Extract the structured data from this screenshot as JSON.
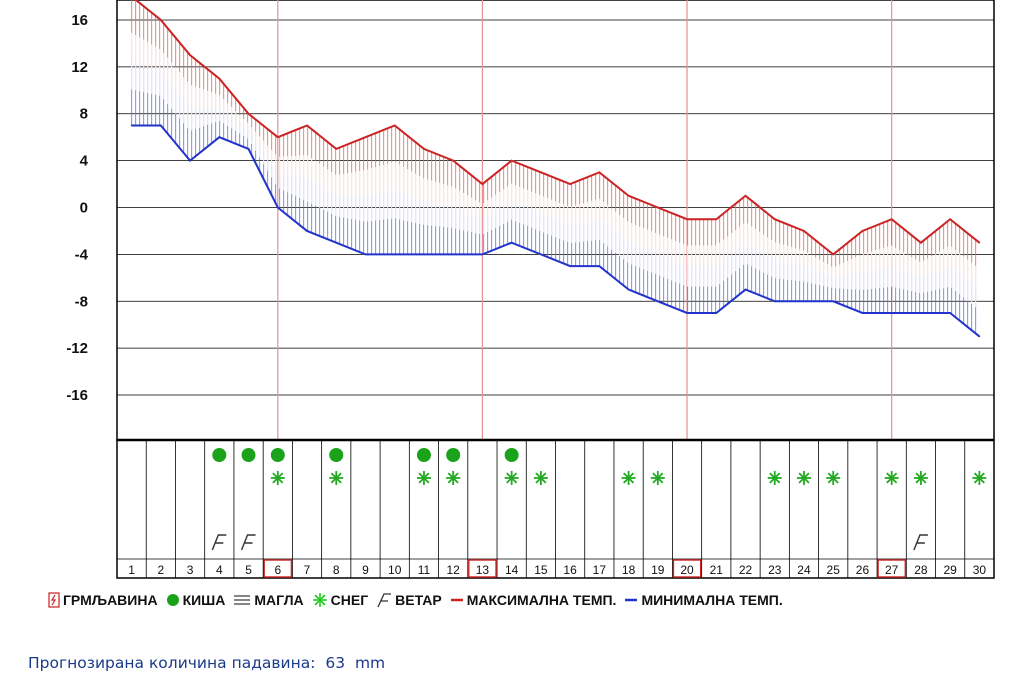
{
  "chart_data": {
    "type": "line",
    "y_ticks": [
      "16",
      "12",
      "8",
      "4",
      "0",
      "-4",
      "-8",
      "-12",
      "-16"
    ],
    "ylim": [
      -20,
      18
    ],
    "days": [
      "1",
      "2",
      "3",
      "4",
      "5",
      "6",
      "7",
      "8",
      "9",
      "10",
      "11",
      "12",
      "13",
      "14",
      "15",
      "16",
      "17",
      "18",
      "19",
      "20",
      "21",
      "22",
      "23",
      "24",
      "25",
      "26",
      "27",
      "28",
      "29",
      "30"
    ],
    "highlighted_days": [
      6,
      13,
      20,
      27
    ],
    "series": [
      {
        "name": "МАКСИМАЛНА ТЕМП.",
        "color": "#cc2222",
        "x": [
          1,
          2,
          3,
          4,
          5,
          6,
          7,
          8,
          9,
          10,
          11,
          12,
          13,
          14,
          15,
          16,
          17,
          18,
          19,
          20,
          21,
          22,
          23,
          24,
          25,
          26,
          27,
          28,
          29,
          30
        ],
        "values": [
          18,
          16,
          13,
          11,
          8,
          6,
          7,
          5,
          6,
          7,
          5,
          4,
          2,
          4,
          3,
          2,
          3,
          1,
          0,
          -1,
          -1,
          1,
          -1,
          -2,
          -4,
          -2,
          -1,
          -3,
          -1,
          -3
        ]
      },
      {
        "name": "МИНИМАЛНА ТЕМП.",
        "color": "#2233cc",
        "x": [
          1,
          2,
          3,
          4,
          5,
          6,
          7,
          8,
          9,
          10,
          11,
          12,
          13,
          14,
          15,
          16,
          17,
          18,
          19,
          20,
          21,
          22,
          23,
          24,
          25,
          26,
          27,
          28,
          29,
          30
        ],
        "values": [
          7,
          7,
          4,
          6,
          5,
          0,
          -2,
          -3,
          -4,
          -4,
          -4,
          -4,
          -4,
          -3,
          -4,
          -5,
          -5,
          -7,
          -8,
          -9,
          -9,
          -7,
          -8,
          -8,
          -8,
          -9,
          -9,
          -9,
          -9,
          -11
        ]
      }
    ],
    "weather": {
      "rain_days": [
        4,
        5,
        6,
        8,
        11,
        12,
        14
      ],
      "snow_days": [
        6,
        8,
        11,
        12,
        14,
        15,
        18,
        19,
        23,
        24,
        25,
        27,
        28,
        30
      ],
      "wind_days": [
        4,
        5,
        28
      ]
    }
  },
  "legend": {
    "thunder": "ГРМЉАВИНА",
    "rain": "КИША",
    "fog": "МАГЛА",
    "snow": "СНЕГ",
    "wind": "ВЕТАР",
    "max": "МАКСИМАЛНА ТЕМП.",
    "min": "МИНИМАЛНА ТЕМП."
  },
  "footer": {
    "label": "Прогнозирана количина падавина:",
    "value": "63",
    "unit": "mm"
  },
  "colors": {
    "max_line": "#cc2222",
    "min_line": "#2233cc",
    "rain": "#1aa21a",
    "snow": "#22aa22",
    "grid_red": "#e89090",
    "text_blue": "#1a3a8a"
  }
}
